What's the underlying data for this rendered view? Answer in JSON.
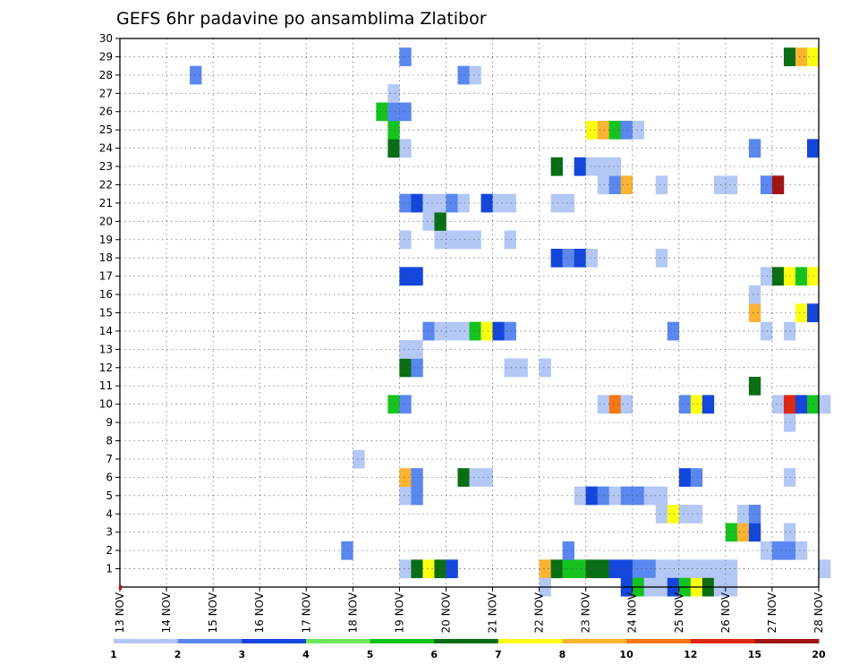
{
  "chart_data": {
    "type": "heatmap",
    "title": "GEFS 6hr padavine po ansamblima Zlatibor",
    "xlabel": "",
    "ylabel": "",
    "x_tick_labels": [
      "13 NOV",
      "14 NOV",
      "15 NOV",
      "16 NOV",
      "17 NOV",
      "18 NOV",
      "19 NOV",
      "20 NOV",
      "21 NOV",
      "22 NOV",
      "23 NOV",
      "24 NOV",
      "25 NOV",
      "26 NOV",
      "27 NOV",
      "28 NOV"
    ],
    "x_range_days": [
      13,
      28
    ],
    "y_tick_labels": [
      "1",
      "2",
      "3",
      "4",
      "5",
      "6",
      "7",
      "8",
      "9",
      "10",
      "11",
      "12",
      "13",
      "14",
      "15",
      "16",
      "17",
      "18",
      "19",
      "20",
      "21",
      "22",
      "23",
      "24",
      "25",
      "26",
      "27",
      "28",
      "29",
      "30"
    ],
    "y_range": [
      0,
      30
    ],
    "grid": true,
    "legend": {
      "placement": "bottom",
      "labels": [
        "1",
        "2",
        "3",
        "4",
        "5",
        "6",
        "7",
        "8",
        "10",
        "12",
        "15",
        "20"
      ],
      "colors": [
        "#b4c8f5",
        "#5a87f0",
        "#1446dc",
        "#6ee65a",
        "#14c31e",
        "#0a6e14",
        "#ffff14",
        "#fab432",
        "#f57814",
        "#dc2814",
        "#a01414"
      ]
    },
    "cells": [
      {
        "member": 1,
        "x": [
          19.0,
          19.25,
          19.5,
          19.75,
          20.0,
          22.0,
          22.25,
          22.5,
          22.75,
          23.0,
          23.25,
          23.5,
          23.75,
          24.0,
          24.25,
          24.5,
          24.75,
          25.0,
          25.25,
          25.5,
          25.75,
          26.0,
          28.0
        ],
        "v": [
          1,
          6,
          7,
          6,
          3,
          8,
          6,
          5,
          5,
          6,
          6,
          3,
          3,
          2,
          2,
          1,
          1,
          1,
          1,
          1,
          1,
          1,
          1
        ]
      },
      {
        "member": 0,
        "x": [
          22.0,
          23.75,
          24.0,
          24.25,
          24.5,
          24.75,
          25.0,
          25.25,
          25.5,
          25.75,
          26.0
        ],
        "v": [
          1,
          3,
          5,
          1,
          1,
          3,
          5,
          7,
          6,
          1,
          1
        ]
      },
      {
        "member": 2,
        "x": [
          17.75,
          22.5,
          26.75,
          27.0,
          27.25,
          27.5
        ],
        "v": [
          2,
          2,
          1,
          2,
          2,
          1
        ]
      },
      {
        "member": 3,
        "x": [
          26.0,
          26.25,
          26.5,
          27.25
        ],
        "v": [
          5,
          8,
          3,
          1
        ]
      },
      {
        "member": 4,
        "x": [
          24.5,
          24.75,
          25.0,
          25.25,
          26.25,
          26.5
        ],
        "v": [
          1,
          7,
          1,
          1,
          1,
          2
        ]
      },
      {
        "member": 5,
        "x": [
          19.0,
          19.25,
          22.75,
          23.0,
          23.25,
          23.5,
          23.75,
          24.0,
          24.25,
          24.5
        ],
        "v": [
          1,
          2,
          1,
          3,
          2,
          1,
          2,
          2,
          1,
          1
        ]
      },
      {
        "member": 6,
        "x": [
          19.0,
          19.25,
          20.25,
          20.5,
          20.75,
          25.0,
          25.25,
          27.25
        ],
        "v": [
          8,
          2,
          6,
          1,
          1,
          3,
          2,
          1
        ]
      },
      {
        "member": 7,
        "x": [
          18.0
        ],
        "v": [
          1
        ]
      },
      {
        "member": 9,
        "x": [
          27.25
        ],
        "v": [
          1
        ]
      },
      {
        "member": 10,
        "x": [
          18.75,
          19.0,
          23.25,
          23.5,
          23.75,
          25.0,
          25.25,
          25.5,
          27.0,
          27.25,
          27.5,
          27.75,
          28.0
        ],
        "v": [
          5,
          2,
          1,
          10,
          1,
          2,
          7,
          3,
          1,
          12,
          3,
          5,
          1
        ]
      },
      {
        "member": 11,
        "x": [
          26.5
        ],
        "v": [
          6
        ]
      },
      {
        "member": 12,
        "x": [
          19.0,
          19.25,
          21.25,
          21.5,
          22.0
        ],
        "v": [
          6,
          2,
          1,
          1,
          1
        ]
      },
      {
        "member": 13,
        "x": [
          19.0,
          19.25
        ],
        "v": [
          1,
          1
        ]
      },
      {
        "member": 14,
        "x": [
          19.5,
          19.75,
          20.0,
          20.25,
          20.5,
          20.75,
          21.0,
          21.25,
          24.75,
          26.75,
          27.25
        ],
        "v": [
          2,
          1,
          1,
          1,
          5,
          7,
          3,
          2,
          2,
          1,
          1
        ]
      },
      {
        "member": 15,
        "x": [
          26.5,
          27.5,
          27.75
        ],
        "v": [
          8,
          7,
          3
        ]
      },
      {
        "member": 16,
        "x": [
          26.5
        ],
        "v": [
          1
        ]
      },
      {
        "member": 17,
        "x": [
          19.0,
          19.25,
          26.75,
          27.0,
          27.25,
          27.5,
          27.75
        ],
        "v": [
          3,
          3,
          1,
          6,
          7,
          5,
          7
        ]
      },
      {
        "member": 18,
        "x": [
          22.25,
          22.5,
          22.75,
          23.0,
          24.5
        ],
        "v": [
          3,
          2,
          3,
          1,
          1
        ]
      },
      {
        "member": 19,
        "x": [
          19.0,
          19.75,
          20.0,
          20.25,
          20.5,
          21.25
        ],
        "v": [
          1,
          1,
          1,
          1,
          1,
          1
        ]
      },
      {
        "member": 20,
        "x": [
          19.5,
          19.75
        ],
        "v": [
          1,
          6
        ]
      },
      {
        "member": 21,
        "x": [
          19.0,
          19.25,
          19.5,
          19.75,
          20.0,
          20.25,
          20.75,
          21.0,
          21.25,
          22.25,
          22.5
        ],
        "v": [
          2,
          3,
          1,
          1,
          2,
          1,
          3,
          1,
          1,
          1,
          1
        ]
      },
      {
        "member": 22,
        "x": [
          23.25,
          23.5,
          23.75,
          24.5,
          25.75,
          26.0,
          26.75,
          27.0
        ],
        "v": [
          1,
          2,
          8,
          1,
          1,
          1,
          2,
          20
        ]
      },
      {
        "member": 23,
        "x": [
          22.25,
          22.75,
          23.0,
          23.25,
          23.5
        ],
        "v": [
          6,
          3,
          1,
          1,
          1
        ]
      },
      {
        "member": 24,
        "x": [
          18.75,
          19.0,
          26.5,
          27.75
        ],
        "v": [
          6,
          1,
          2,
          3
        ]
      },
      {
        "member": 25,
        "x": [
          18.75,
          23.0,
          23.25,
          23.5,
          23.75,
          24.0
        ],
        "v": [
          5,
          7,
          8,
          5,
          2,
          1
        ]
      },
      {
        "member": 26,
        "x": [
          18.5,
          18.75,
          19.0
        ],
        "v": [
          5,
          2,
          2
        ]
      },
      {
        "member": 27,
        "x": [
          18.75
        ],
        "v": [
          1
        ]
      },
      {
        "member": 28,
        "x": [
          14.5,
          20.25,
          20.5
        ],
        "v": [
          2,
          2,
          1
        ]
      },
      {
        "member": 29,
        "x": [
          19.0,
          27.25,
          27.5,
          27.75
        ],
        "v": [
          2,
          6,
          8,
          7
        ]
      }
    ]
  }
}
